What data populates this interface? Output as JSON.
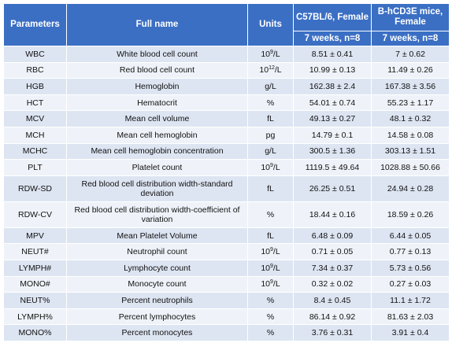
{
  "header": {
    "parameters": "Parameters",
    "full_name": "Full name",
    "units": "Units",
    "group1": "C57BL/6, Female",
    "group2": "B-hCD3E mice, Female",
    "group1_sub": "7 weeks, n=8",
    "group2_sub": "7 weeks, n=8"
  },
  "rows": [
    {
      "param": "WBC",
      "name": "White blood cell count",
      "unit_base": "10",
      "unit_exp": "9",
      "unit_rest": "/L",
      "v1": "8.51 ± 0.41",
      "v2": "7 ± 0.62"
    },
    {
      "param": "RBC",
      "name": "Red blood cell count",
      "unit_base": "10",
      "unit_exp": "12",
      "unit_rest": "/L",
      "v1": "10.99 ± 0.13",
      "v2": "11.49 ± 0.26"
    },
    {
      "param": "HGB",
      "name": "Hemoglobin",
      "unit_base": "g/L",
      "unit_exp": "",
      "unit_rest": "",
      "v1": "162.38 ± 2.4",
      "v2": "167.38 ± 3.56"
    },
    {
      "param": "HCT",
      "name": "Hematocrit",
      "unit_base": "%",
      "unit_exp": "",
      "unit_rest": "",
      "v1": "54.01 ± 0.74",
      "v2": "55.23 ± 1.17"
    },
    {
      "param": "MCV",
      "name": "Mean cell volume",
      "unit_base": "fL",
      "unit_exp": "",
      "unit_rest": "",
      "v1": "49.13 ± 0.27",
      "v2": "48.1 ± 0.32"
    },
    {
      "param": "MCH",
      "name": "Mean cell hemoglobin",
      "unit_base": "pg",
      "unit_exp": "",
      "unit_rest": "",
      "v1": "14.79 ± 0.1",
      "v2": "14.58 ± 0.08"
    },
    {
      "param": "MCHC",
      "name": "Mean cell hemoglobin concentration",
      "unit_base": "g/L",
      "unit_exp": "",
      "unit_rest": "",
      "v1": "300.5 ± 1.36",
      "v2": "303.13 ± 1.51"
    },
    {
      "param": "PLT",
      "name": "Platelet count",
      "unit_base": "10",
      "unit_exp": "9",
      "unit_rest": "/L",
      "v1": "1119.5 ± 49.64",
      "v2": "1028.88 ± 50.66"
    },
    {
      "param": "RDW-SD",
      "name": "Red blood cell distribution width-standard deviation",
      "unit_base": "fL",
      "unit_exp": "",
      "unit_rest": "",
      "v1": "26.25 ± 0.51",
      "v2": "24.94 ± 0.28",
      "tall": true
    },
    {
      "param": "RDW-CV",
      "name": "Red blood cell distribution width-coefficient of variation",
      "unit_base": "%",
      "unit_exp": "",
      "unit_rest": "",
      "v1": "18.44 ± 0.16",
      "v2": "18.59 ± 0.26",
      "tall": true
    },
    {
      "param": "MPV",
      "name": "Mean Platelet Volume",
      "unit_base": "fL",
      "unit_exp": "",
      "unit_rest": "",
      "v1": "6.48 ± 0.09",
      "v2": "6.44 ± 0.05"
    },
    {
      "param": "NEUT#",
      "name": "Neutrophil count",
      "unit_base": "10",
      "unit_exp": "9",
      "unit_rest": "/L",
      "v1": "0.71 ± 0.05",
      "v2": "0.77 ± 0.13"
    },
    {
      "param": "LYMPH#",
      "name": "Lymphocyte count",
      "unit_base": "10",
      "unit_exp": "9",
      "unit_rest": "/L",
      "v1": "7.34 ± 0.37",
      "v2": "5.73 ± 0.56"
    },
    {
      "param": "MONO#",
      "name": "Monocyte count",
      "unit_base": "10",
      "unit_exp": "9",
      "unit_rest": "/L",
      "v1": "0.32 ± 0.02",
      "v2": "0.27 ± 0.03"
    },
    {
      "param": "NEUT%",
      "name": "Percent neutrophils",
      "unit_base": "%",
      "unit_exp": "",
      "unit_rest": "",
      "v1": "8.4 ± 0.45",
      "v2": "11.1 ± 1.72"
    },
    {
      "param": "LYMPH%",
      "name": "Percent lymphocytes",
      "unit_base": "%",
      "unit_exp": "",
      "unit_rest": "",
      "v1": "86.14 ± 0.92",
      "v2": "81.63 ± 2.03"
    },
    {
      "param": "MONO%",
      "name": "Percent monocytes",
      "unit_base": "%",
      "unit_exp": "",
      "unit_rest": "",
      "v1": "3.76 ± 0.31",
      "v2": "3.91 ± 0.4"
    }
  ]
}
